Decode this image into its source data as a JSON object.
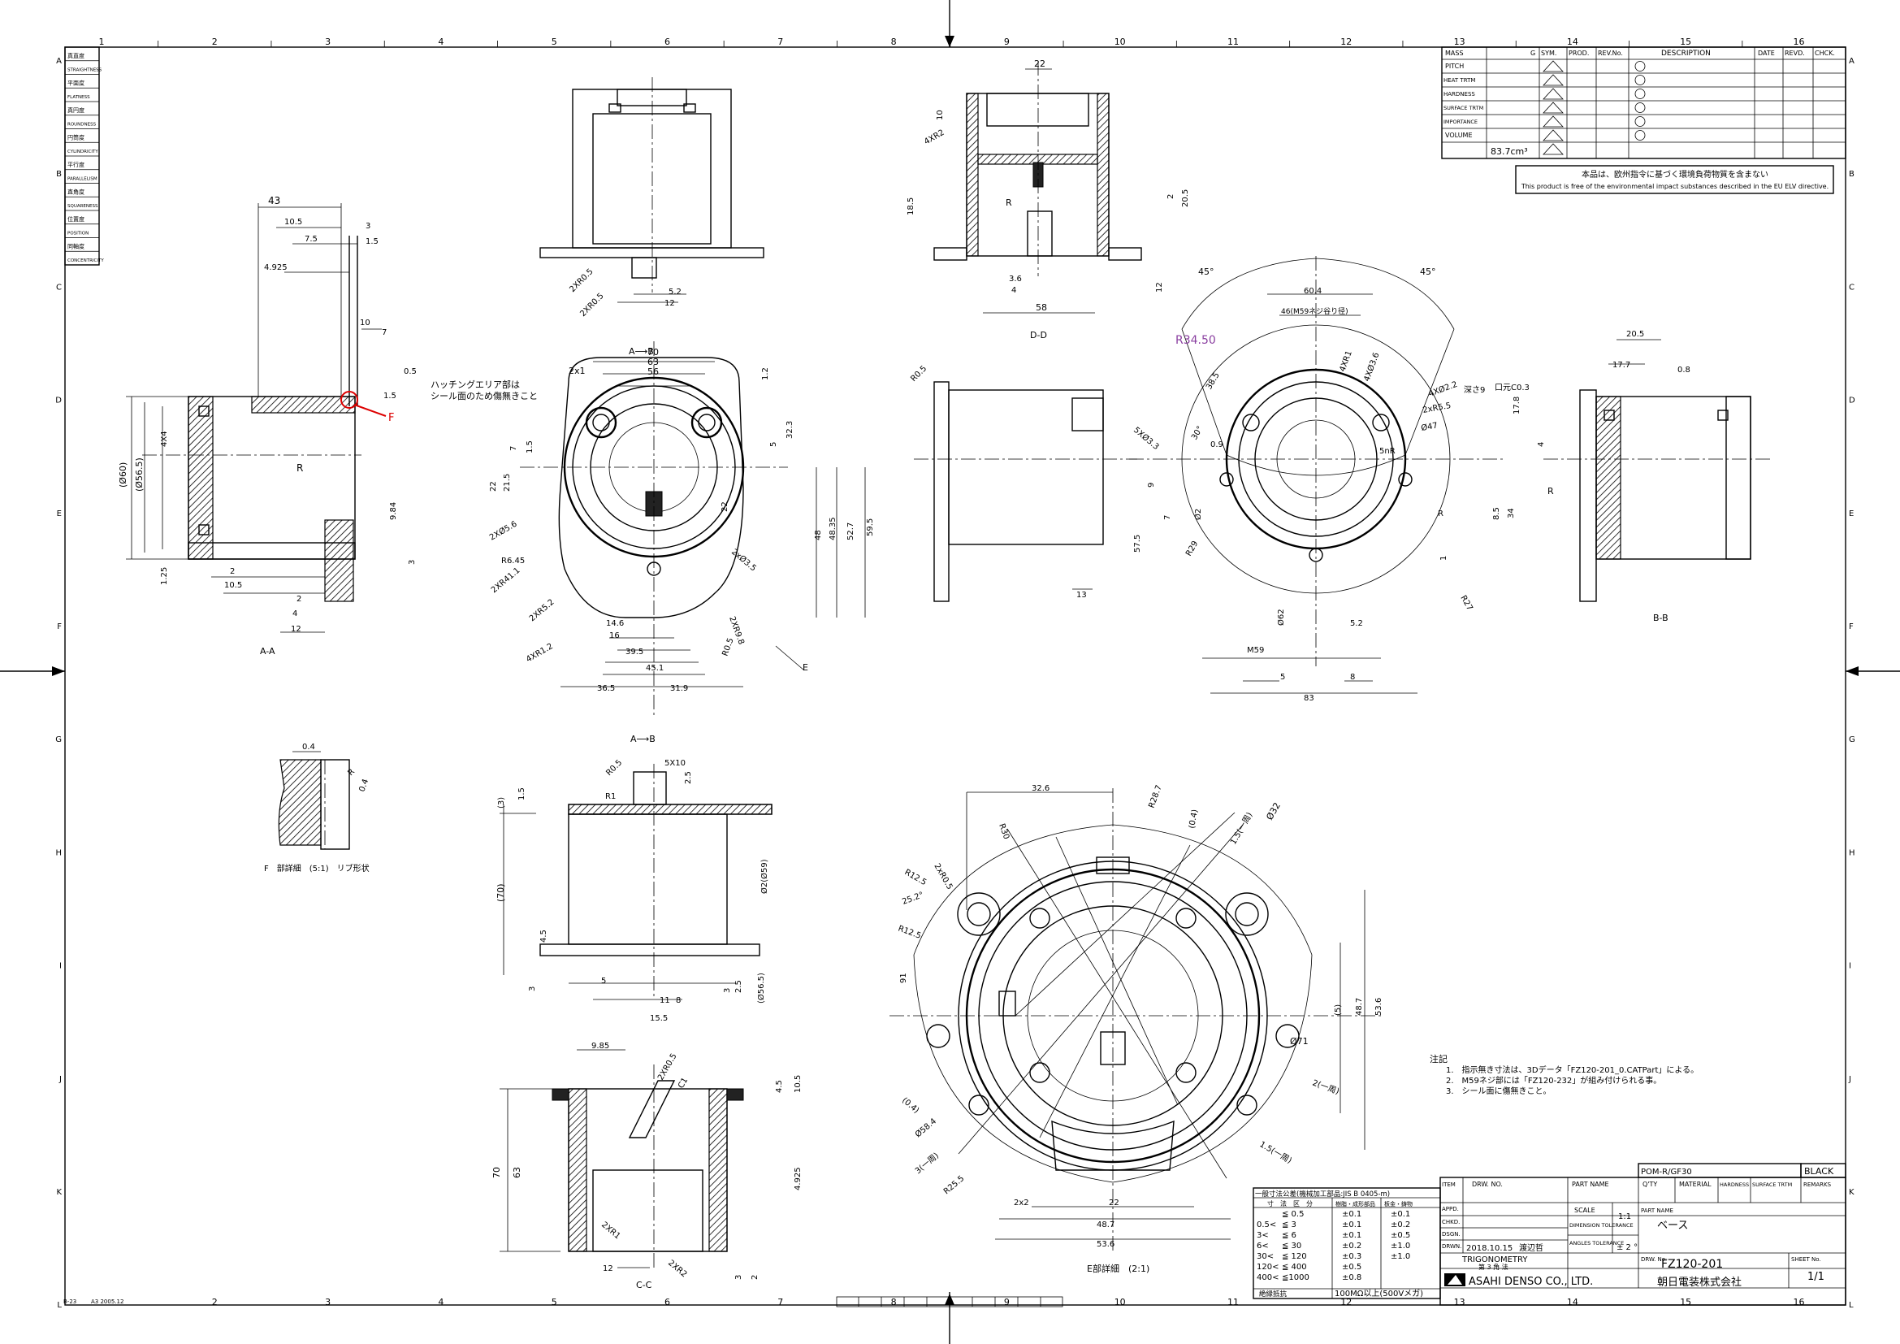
{
  "frame": {
    "column_numbers": [
      "1",
      "2",
      "3",
      "4",
      "5",
      "6",
      "7",
      "8",
      "9",
      "10",
      "11",
      "12",
      "13",
      "14",
      "15",
      "16"
    ],
    "row_letters": [
      "A",
      "B",
      "C",
      "D",
      "E",
      "F",
      "G",
      "H",
      "I",
      "J",
      "K",
      "L"
    ],
    "bottom_left_code": "B-23",
    "bottom_left_code2": "A3 2005.12"
  },
  "gdt_legend": [
    "真直度",
    "STRAIGHTNESS",
    "平面度",
    "FLATNESS",
    "真円度",
    "ROUNDNESS",
    "円筒度",
    "CYLINDRICITY",
    "平行度",
    "PARALLELISM",
    "直角度",
    "SQUARENESS",
    "位置度",
    "POSITION",
    "同軸度",
    "CONCENTRICITY"
  ],
  "revision_table": {
    "rows": [
      "MASS",
      "PITCH",
      "HEAT TRTM",
      "HARDNESS",
      "SURFACE TRTM",
      "IMPORTANCE",
      "VOLUME"
    ],
    "mass_unit": "G",
    "volume_value": "83.7cm³",
    "headers": [
      "SYM.",
      "PROD.",
      "REV.No.",
      "DESCRIPTION",
      "DATE",
      "REVD.",
      "CHCK."
    ],
    "note_jp": "本品は、欧州指令に基づく環境負荷物質を含まない",
    "note_en": "This product is free of the environmental impact substances described in the EU ELV directive."
  },
  "views": {
    "aa_label": "A-A",
    "dd_label": "D-D",
    "bb_label": "B-B",
    "cc_label": "C-C",
    "e_detail_label": "E部詳細　(2:1)",
    "f_detail_label": "F　部詳細　(5:1)　リブ形状",
    "section_ab_top": "A⟶B",
    "section_ab_bottom": "A⟶B"
  },
  "annotations": {
    "hatch_note_line1": "ハッチングエリア部は",
    "hatch_note_line2": "シール面のため傷無きこと",
    "r_dim_purple": "R34.50",
    "red_callout": "F"
  },
  "notes": {
    "title": "注記",
    "items": [
      "1.　指示無き寸法は、3Dデータ「FZ120-201_0.CATPart」による。",
      "2.　M59ネジ部には「FZ120-232」が組み付けられる事。",
      "3.　シール面に傷無きこと。"
    ]
  },
  "tolerance_table": {
    "header": "一般寸法公差(機械加工部品:JIS B 0405-m)",
    "col_headers": [
      "寸　法　区　分",
      "樹脂・成形部品",
      "板金・鋳物"
    ],
    "rows": [
      [
        "",
        "≦ 0.5",
        "±0.1",
        "±0.1"
      ],
      [
        "0.5<",
        "≦ 3",
        "±0.1",
        "±0.2"
      ],
      [
        "3<",
        "≦ 6",
        "±0.1",
        "±0.5"
      ],
      [
        "6<",
        "≦ 30",
        "±0.2",
        "±1.0"
      ],
      [
        "30<",
        "≦ 120",
        "±0.3",
        "±1.0"
      ],
      [
        "120<",
        "≦ 400",
        "±0.5",
        ""
      ],
      [
        "400<",
        "≦1000",
        "±0.8",
        ""
      ]
    ],
    "footer_left": "絶縁抵抗",
    "footer_right": "100MΩ以上(500Vメガ)"
  },
  "title_block": {
    "material_code": "POM-R/GF30",
    "color": "BLACK",
    "headers": [
      "ITEM",
      "DRW. NO.",
      "PART NAME",
      "Q'TY",
      "MATERIAL",
      "HARDNESS",
      "SURFACE TRTM",
      "REMARKS"
    ],
    "appd": "APPD.",
    "chkd": "CHKD.",
    "dsgn": "DSGN.",
    "drwn": "DRWN.",
    "date": "2018.10.15",
    "drawn_by": "渡辺哲",
    "scale_label": "SCALE",
    "scale": "1:1",
    "part_name_label": "PART NAME",
    "part_name": "ベース",
    "dim_tol_label": "DIMENSION TOLERANCE",
    "angle_tol_label": "ANGLES TOLERANCE",
    "angle_tol": "± 2 °",
    "trig_label": "TRIGONOMETRY",
    "trig_jp": "第 3 角 法",
    "drw_no_label": "DRW. No.",
    "drw_no": "FZ120-201",
    "sheet_label": "SHEET No.",
    "sheet": "1/1",
    "company_en": "ASAHI DENSO CO., LTD.",
    "company_jp": "朝日電装株式会社"
  },
  "dimensions": {
    "aa": [
      "43",
      "10.5",
      "3",
      "7.5",
      "1.5",
      "4.925",
      "10",
      "7",
      "0.5",
      "1.5",
      "(Ø60)",
      "(Ø56.5)",
      "4X4",
      "R",
      "9.84",
      "1.25",
      "2",
      "10.5",
      "2",
      "4",
      "12",
      "3"
    ],
    "top_view": [
      "2XR0.5",
      "2XR0.5",
      "5.2",
      "12"
    ],
    "dd": [
      "22",
      "10",
      "4XR2",
      "18.5",
      "R",
      "2",
      "20.5",
      "3.6",
      "4",
      "58",
      "12"
    ],
    "front": [
      "70",
      "63",
      "56",
      "2x1",
      "1.2",
      "5",
      "32.3",
      "7",
      "1.5",
      "22",
      "21.5",
      "48",
      "48.35",
      "52.7",
      "59.5",
      "2XØ5.6",
      "R6.45",
      "2XR41.1",
      "2XR5.2",
      "4XR1.2",
      "14.6",
      "16",
      "39.5",
      "45.1",
      "36.5",
      "31.9",
      "2XR9.8",
      "R0.5",
      "2xØ3.5",
      "22",
      "E"
    ],
    "side": [
      "R0.5",
      "13"
    ],
    "right": [
      "45°",
      "45°",
      "60.4",
      "46(M59ネジ谷り径)",
      "R34.50",
      "38.5",
      "4XR1",
      "4XØ3.6",
      "4XØ2.2",
      "深さ9",
      "口元C0.3",
      "2xR5.5",
      "Ø47",
      "17.8",
      "5XØ3.3",
      "30°",
      "0.9",
      "9",
      "7",
      "Ø2",
      "R29",
      "57.5",
      "R27",
      "34",
      "8.5",
      "1",
      "5.2",
      "Ø62",
      "M59",
      "5",
      "8",
      "83",
      "5nR",
      "R"
    ],
    "bb": [
      "20.5",
      "17.7",
      "0.8",
      "4",
      "R"
    ],
    "f_detail": [
      "0.4",
      "R",
      "0.4"
    ],
    "lower_front": [
      "5X10",
      "R0.5",
      "R1",
      "2.5",
      "(3)",
      "1.5",
      "(70)",
      "Ø2(Ø59)",
      "4.5",
      "3",
      "5",
      "15.5",
      "11",
      "8",
      "3",
      "2.5",
      "(Ø56.5)"
    ],
    "cc": [
      "9.85",
      "2XR0.5",
      "C1",
      "4.5",
      "10.5",
      "70",
      "63",
      "4.925",
      "2XR1",
      "12",
      "2XR2",
      "3",
      "2"
    ],
    "e_detail": [
      "32.6",
      "R28.7",
      "(0.4)",
      "1.5(一周)",
      "Ø32",
      "R30",
      "R12.5",
      "2xR0.5",
      "25.2°",
      "R12.5",
      "91",
      "(5)",
      "48.7",
      "53.6",
      "Ø71",
      "(0.4)",
      "Ø58.4",
      "3(一周)",
      "R25.5",
      "2(一周)",
      "1.5(一周)",
      "2x2",
      "22",
      "48.7",
      "53.6"
    ]
  }
}
